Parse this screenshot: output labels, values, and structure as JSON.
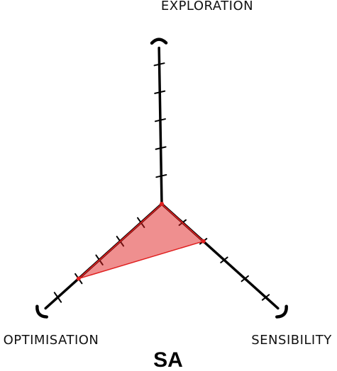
{
  "chart_data": {
    "type": "radar",
    "title": "SA",
    "axes": [
      {
        "label": "EXPLORATION",
        "max": 5,
        "ticks": 5
      },
      {
        "label": "SENSIBILITY",
        "max": 5,
        "ticks": 5
      },
      {
        "label": "OPTIMISATION",
        "max": 5,
        "ticks": 5
      }
    ],
    "series": [
      {
        "values": [
          0.0,
          2.0,
          4.0
        ],
        "color": "#e02020"
      }
    ],
    "style": "xkcd",
    "grid": false
  }
}
